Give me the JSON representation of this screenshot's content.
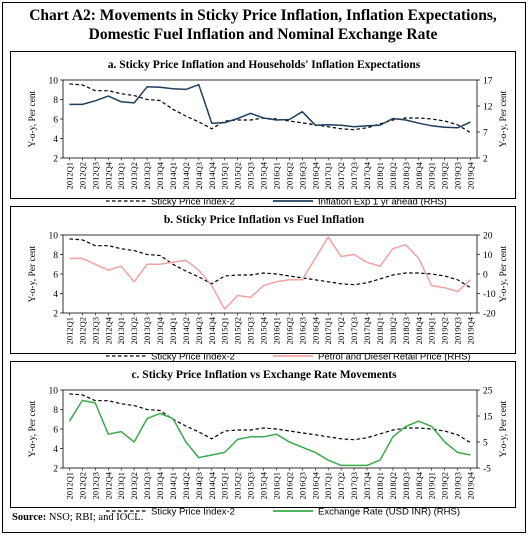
{
  "title": "Chart A2: Movements in Sticky Price Inflation, Inflation Expectations, Domestic Fuel Inflation and Nominal Exchange Rate",
  "title_line1": "Chart A2: Movements in Sticky Price Inflation, Inflation Expectations,",
  "title_line2": "Domestic Fuel Inflation and Nominal Exchange Rate",
  "source_label": "Source:",
  "source_text": " NSO; RBI; and IOCL.",
  "colors": {
    "sticky": "#000000",
    "expectations": "#1f3f5f",
    "fuel": "#f2a0a0",
    "fx": "#3aaa4a"
  },
  "chart_data": [
    {
      "type": "line",
      "title": "a. Sticky Price Inflation and Households' Inflation Expectations",
      "ylabel": "Y-o-y, Per cent",
      "ylim": [
        2,
        10
      ],
      "yticks": [
        2,
        4,
        6,
        8,
        10
      ],
      "y2lim": [
        2,
        17
      ],
      "y2ticks": [
        2,
        7,
        12,
        17
      ],
      "x": [
        "2012Q1",
        "2012Q2",
        "2012Q3",
        "2012Q4",
        "2013Q1",
        "2013Q2",
        "2013Q3",
        "2013Q4",
        "2014Q1",
        "2014Q2",
        "2014Q3",
        "2014Q4",
        "2015Q1",
        "2015Q2",
        "2015Q3",
        "2015Q4",
        "2016Q1",
        "2016Q2",
        "2016Q3",
        "2016Q4",
        "2017Q1",
        "2017Q2",
        "2017Q3",
        "2017Q4",
        "2018Q1",
        "2018Q2",
        "2018Q3",
        "2018Q4",
        "2019Q1",
        "2019Q2",
        "2019Q3",
        "2019Q4"
      ],
      "series": [
        {
          "name": "Sticky Price Index-2",
          "axis": "left",
          "style": "dashed",
          "values": [
            9.6,
            9.5,
            8.9,
            8.9,
            8.6,
            8.4,
            8.0,
            7.9,
            7.0,
            6.3,
            5.7,
            5.0,
            5.8,
            5.9,
            5.9,
            6.1,
            6.0,
            5.8,
            5.6,
            5.4,
            5.2,
            5.0,
            4.9,
            5.1,
            5.5,
            5.9,
            6.1,
            6.1,
            6.0,
            5.8,
            5.4,
            4.6
          ]
        },
        {
          "name": "Inflation Exp 1 yr ahead (RHS)",
          "axis": "right",
          "style": "solid",
          "values": [
            12.3,
            12.3,
            13.0,
            13.9,
            12.8,
            12.6,
            15.7,
            15.6,
            15.3,
            15.2,
            16.1,
            8.7,
            8.8,
            9.6,
            10.6,
            9.7,
            9.3,
            9.4,
            10.9,
            8.3,
            8.4,
            8.3,
            8.0,
            8.2,
            8.3,
            9.6,
            9.3,
            8.7,
            8.2,
            7.9,
            7.8,
            8.9
          ]
        }
      ]
    },
    {
      "type": "line",
      "title": "b. Sticky Price Inflation vs Fuel Inflation",
      "ylabel": "Y-o-y, Per cent",
      "ylim": [
        2,
        10
      ],
      "yticks": [
        2,
        4,
        6,
        8,
        10
      ],
      "y2lim": [
        -20,
        20
      ],
      "y2ticks": [
        -20,
        -10,
        0,
        10,
        20
      ],
      "x": [
        "2012Q1",
        "2012Q2",
        "2012Q3",
        "2012Q4",
        "2013Q1",
        "2013Q2",
        "2013Q3",
        "2013Q4",
        "2014Q1",
        "2014Q2",
        "2014Q3",
        "2014Q4",
        "2015Q1",
        "2015Q2",
        "2015Q3",
        "2015Q4",
        "2016Q1",
        "2016Q2",
        "2016Q3",
        "2016Q4",
        "2017Q1",
        "2017Q2",
        "2017Q3",
        "2017Q4",
        "2018Q1",
        "2018Q2",
        "2018Q3",
        "2018Q4",
        "2019Q1",
        "2019Q2",
        "2019Q3",
        "2019Q4"
      ],
      "series": [
        {
          "name": "Sticky Price Index-2",
          "axis": "left",
          "style": "dashed",
          "values": [
            9.6,
            9.5,
            8.9,
            8.9,
            8.6,
            8.4,
            8.0,
            7.9,
            7.0,
            6.3,
            5.7,
            5.0,
            5.8,
            5.9,
            5.9,
            6.1,
            6.0,
            5.8,
            5.6,
            5.4,
            5.2,
            5.0,
            4.9,
            5.1,
            5.5,
            5.9,
            6.1,
            6.1,
            6.0,
            5.8,
            5.4,
            4.6
          ]
        },
        {
          "name": "Petrol and Diesel Retail Price (RHS)",
          "axis": "right",
          "style": "solid",
          "values": [
            8,
            8,
            5,
            2,
            4,
            -4,
            5,
            5,
            6,
            7,
            2,
            -6,
            -18,
            -11,
            -12,
            -6,
            -4,
            -3,
            -3,
            8,
            19,
            9,
            10,
            6,
            4,
            13,
            15,
            8,
            -6,
            -7,
            -9,
            -3
          ]
        }
      ]
    },
    {
      "type": "line",
      "title": "c. Sticky Price Inflation vs Exchange Rate Movements",
      "ylabel": "Y-o-y, Per cent",
      "ylim": [
        2,
        10
      ],
      "yticks": [
        2,
        4,
        6,
        8,
        10
      ],
      "y2lim": [
        -5,
        25
      ],
      "y2ticks": [
        -5,
        5,
        15,
        25
      ],
      "x": [
        "2012Q1",
        "2012Q2",
        "2012Q3",
        "2012Q4",
        "2013Q1",
        "2013Q2",
        "2013Q3",
        "2013Q4",
        "2014Q1",
        "2014Q2",
        "2014Q3",
        "2014Q4",
        "2015Q1",
        "2015Q2",
        "2015Q3",
        "2015Q4",
        "2016Q1",
        "2016Q2",
        "2016Q3",
        "2016Q4",
        "2017Q1",
        "2017Q2",
        "2017Q3",
        "2017Q4",
        "2018Q1",
        "2018Q2",
        "2018Q3",
        "2018Q4",
        "2019Q1",
        "2019Q2",
        "2019Q3",
        "2019Q4"
      ],
      "series": [
        {
          "name": "Sticky Price Index-2",
          "axis": "left",
          "style": "dashed",
          "values": [
            9.6,
            9.5,
            8.9,
            8.9,
            8.6,
            8.4,
            8.0,
            7.9,
            7.0,
            6.3,
            5.7,
            5.0,
            5.8,
            5.9,
            5.9,
            6.1,
            6.0,
            5.8,
            5.6,
            5.4,
            5.2,
            5.0,
            4.9,
            5.1,
            5.5,
            5.9,
            6.1,
            6.1,
            6.0,
            5.8,
            5.4,
            4.6
          ]
        },
        {
          "name": "Exchange Rate (USD INR) (RHS)",
          "axis": "right",
          "style": "solid",
          "values": [
            13,
            21,
            20,
            8,
            9,
            5,
            14,
            16,
            14,
            5,
            -1,
            0,
            1,
            6,
            7,
            7,
            8,
            5,
            3,
            1,
            -2,
            -4,
            -4,
            -4,
            -2,
            7,
            11,
            13,
            11,
            5,
            1,
            0
          ]
        }
      ]
    }
  ]
}
